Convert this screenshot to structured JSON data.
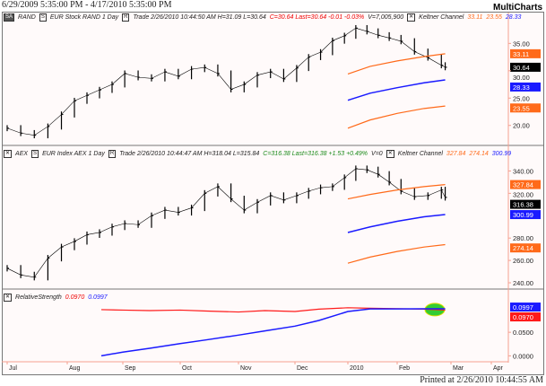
{
  "header": {
    "range": "6/29/2009 5:35:00 PM - 4/17/2010 5:35:00 PM",
    "brand": "MultiCharts",
    "printed": "Printed at 2/26/2010 10:44:55 AM"
  },
  "panel1": {
    "badge": "SA",
    "symbol": "RAND",
    "s_btn": "S",
    "desc": "EUR Stock RAND  1 Day",
    "r_btn": "R",
    "info": "Trade  2/26/2010  10:44:50 AM  H=31.09  L=30.64",
    "change": "C=30.64  Last=30.64  -0.01  -0.03%",
    "vol": "V=7,005,900",
    "indicator": "Keltner Channel",
    "k_upper": "33.11",
    "k_lower": "23.55",
    "k_mid": "28.33"
  },
  "panel2": {
    "symbol": "AEX",
    "s_btn": "S",
    "desc": "EUR Index AEX  1 Day",
    "r_btn": "R",
    "info": "Trade  2/26/2010  10:44:47 AM  H=318.04  L=315.84",
    "change": "C=316.38  Last=316.38  +1.53  +0.49%",
    "vol": "V=0",
    "indicator": "Keltner Channel",
    "k_upper": "327.84",
    "k_lower": "274.14",
    "k_mid": "300.99"
  },
  "panel3": {
    "indicator": "RelativeStrength",
    "v1": "0.0970",
    "v2": "0.0997"
  },
  "colors": {
    "upper": "#ff6a1a",
    "mid": "#1a1aff",
    "rs": "#ff1a1a",
    "highlight": "#33cc33"
  },
  "chart_data": [
    {
      "type": "ohlc-line",
      "title": "RAND",
      "ylim": [
        17,
        39
      ],
      "ticks": [
        "35.00",
        "30.00",
        "25.00",
        "20.00"
      ],
      "last": "30.64",
      "x": [
        "2009-07-01",
        "2009-07-08",
        "2009-07-15",
        "2009-07-22",
        "2009-07-29",
        "2009-08-05",
        "2009-08-12",
        "2009-08-19",
        "2009-08-26",
        "2009-09-02",
        "2009-09-09",
        "2009-09-16",
        "2009-09-23",
        "2009-09-30",
        "2009-10-07",
        "2009-10-14",
        "2009-10-21",
        "2009-10-28",
        "2009-11-04",
        "2009-11-11",
        "2009-11-18",
        "2009-11-25",
        "2009-12-02",
        "2009-12-09",
        "2009-12-16",
        "2009-12-23",
        "2009-12-30",
        "2010-01-06",
        "2010-01-13",
        "2010-01-20",
        "2010-01-27",
        "2010-02-03",
        "2010-02-10",
        "2010-02-17",
        "2010-02-24",
        "2010-02-26"
      ],
      "close": [
        19.5,
        18.6,
        18.2,
        19.8,
        22,
        24.5,
        25.5,
        26.5,
        27.5,
        29.5,
        28.8,
        28.6,
        29.8,
        29,
        30.3,
        30.6,
        29.5,
        26.6,
        27.5,
        29.2,
        29.8,
        28.5,
        30.5,
        32.5,
        33.4,
        35.5,
        36.4,
        37.8,
        37.2,
        36.5,
        36,
        35.4,
        33.5,
        32.4,
        31,
        30.64
      ],
      "keltner": {
        "x": [
          "2010-01-01",
          "2010-01-15",
          "2010-02-01",
          "2010-02-15",
          "2010-02-26"
        ],
        "upper": [
          29.4,
          30.8,
          31.8,
          32.6,
          33.11
        ],
        "mid": [
          24.6,
          25.9,
          26.9,
          27.8,
          28.33
        ],
        "lower": [
          19.5,
          21,
          22.2,
          23.1,
          23.55
        ]
      }
    },
    {
      "type": "ohlc-line",
      "title": "AEX",
      "ylim": [
        236,
        350
      ],
      "ticks": [
        "340.00",
        "320.00",
        "280.00",
        "260.00",
        "240.00"
      ],
      "last": "316.38",
      "x": [
        "2009-07-01",
        "2009-07-08",
        "2009-07-15",
        "2009-07-22",
        "2009-07-29",
        "2009-08-05",
        "2009-08-12",
        "2009-08-19",
        "2009-08-26",
        "2009-09-02",
        "2009-09-09",
        "2009-09-16",
        "2009-09-23",
        "2009-09-30",
        "2009-10-07",
        "2009-10-14",
        "2009-10-21",
        "2009-10-28",
        "2009-11-04",
        "2009-11-11",
        "2009-11-18",
        "2009-11-25",
        "2009-12-02",
        "2009-12-09",
        "2009-12-16",
        "2009-12-23",
        "2009-12-30",
        "2010-01-06",
        "2010-01-13",
        "2010-01-20",
        "2010-01-27",
        "2010-02-03",
        "2010-02-10",
        "2010-02-17",
        "2010-02-24",
        "2010-02-26"
      ],
      "close": [
        253,
        247,
        245,
        262,
        272,
        277,
        283,
        285,
        290,
        293,
        292,
        300,
        305,
        303,
        307,
        320,
        326,
        315,
        305,
        312,
        318,
        314,
        318,
        322,
        325,
        326,
        334,
        342,
        341,
        337,
        330,
        322,
        317,
        318,
        323,
        316.38
      ],
      "keltner": {
        "x": [
          "2010-01-01",
          "2010-01-15",
          "2010-02-01",
          "2010-02-15",
          "2010-02-26"
        ],
        "upper": [
          315,
          319,
          323,
          326,
          327.84
        ],
        "mid": [
          285,
          290,
          295,
          299,
          300.99
        ],
        "lower": [
          257.5,
          263,
          268,
          272,
          274.14
        ]
      }
    },
    {
      "type": "line",
      "title": "RelativeStrength",
      "ylim": [
        -0.003,
        0.115
      ],
      "ticks": [
        "0.0500",
        "0.0000"
      ],
      "x": [
        "2009-08-20",
        "2009-09-01",
        "2009-09-15",
        "2009-10-01",
        "2009-10-15",
        "2009-11-01",
        "2009-11-15",
        "2009-12-01",
        "2009-12-15",
        "2010-01-01",
        "2010-01-15",
        "2010-02-01",
        "2010-02-15",
        "2010-02-26"
      ],
      "series": [
        {
          "name": "0.0970",
          "values": [
            0.098,
            0.097,
            0.096,
            0.097,
            0.095,
            0.093,
            0.096,
            0.094,
            0.099,
            0.102,
            0.101,
            0.1,
            0.099,
            0.097
          ]
        },
        {
          "name": "0.0997",
          "values": [
            0.0,
            0.008,
            0.016,
            0.026,
            0.034,
            0.044,
            0.053,
            0.063,
            0.075,
            0.094,
            0.0995,
            0.0995,
            0.0997,
            0.0997
          ]
        }
      ]
    }
  ],
  "xaxis": [
    "Jul",
    "Aug",
    "Sep",
    "Oct",
    "Nov",
    "Dec",
    "2010",
    "Feb",
    "Mar",
    "Apr"
  ]
}
